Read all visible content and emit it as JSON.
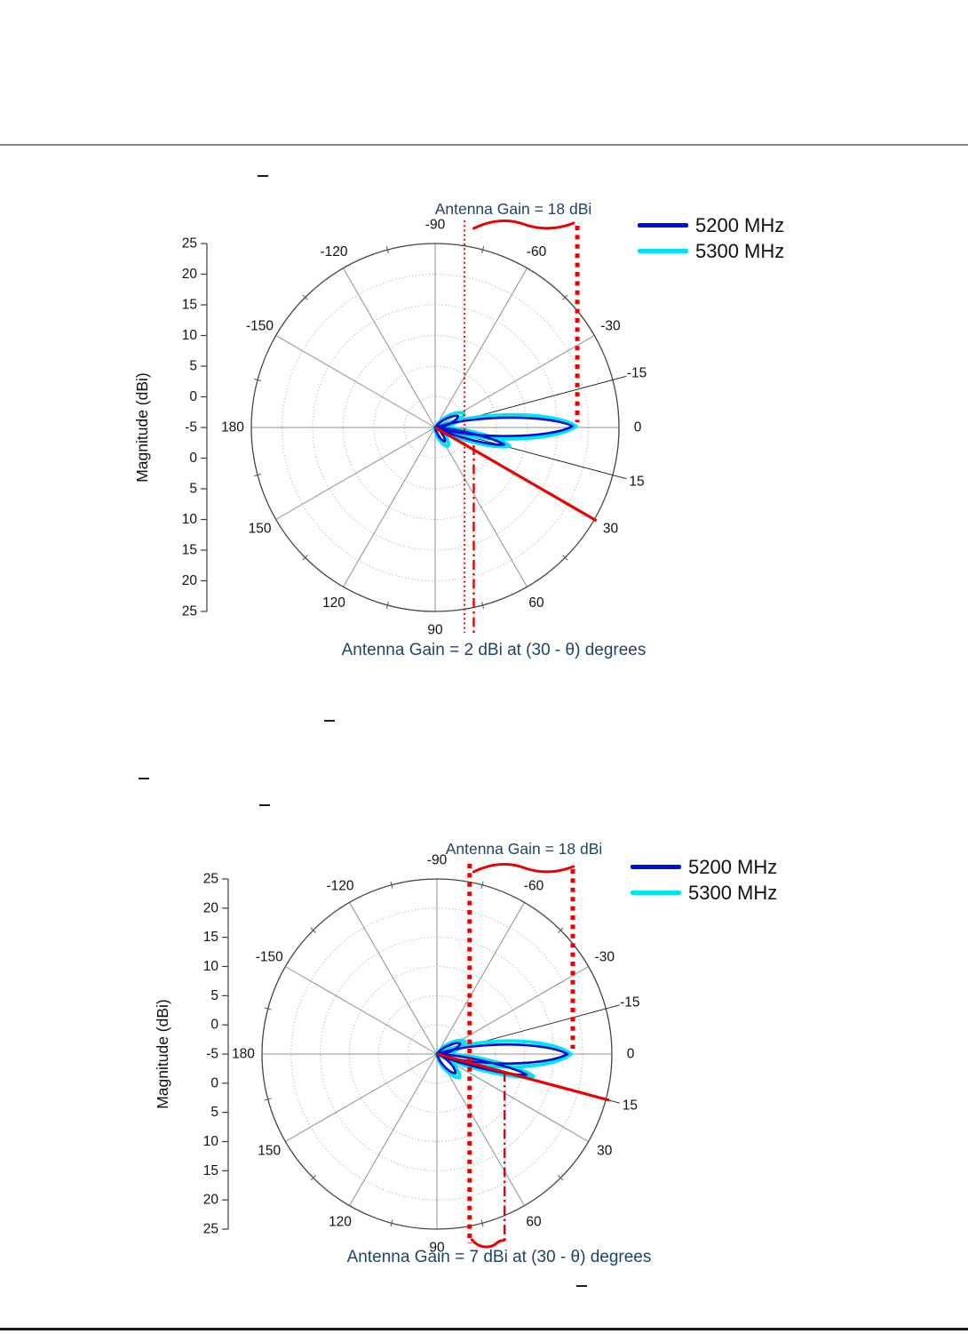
{
  "page": {
    "colors": {
      "annotation_text": "#1f4468",
      "red": "#e90000",
      "top_rule": "#8a8a8a",
      "bottom_rule": "#151515"
    }
  },
  "chart_data": [
    {
      "type": "polar",
      "annotations": {
        "top": "Antenna Gain = 18 dBi",
        "bottom": "Antenna Gain = 2 dBi at (30 - θ) degrees"
      },
      "axis_label": "Magnitude (dBi)",
      "scale": {
        "center_dbi": -5,
        "outer_dbi": 25,
        "ring_step_dbi": 5
      },
      "mag_ticks": [
        "25",
        "20",
        "15",
        "10",
        "5",
        "0",
        "-5",
        "0",
        "5",
        "10",
        "15",
        "20",
        "25"
      ],
      "spoke_step_deg": 30,
      "extra_spokes_deg": [
        -15,
        15
      ],
      "angle_labels": [
        {
          "deg": -90,
          "text": "-90"
        },
        {
          "deg": -60,
          "text": "-60"
        },
        {
          "deg": -30,
          "text": "-30"
        },
        {
          "deg": -15,
          "text": "-15"
        },
        {
          "deg": 0,
          "text": "0"
        },
        {
          "deg": 15,
          "text": "15"
        },
        {
          "deg": 30,
          "text": "30"
        },
        {
          "deg": 60,
          "text": "60"
        },
        {
          "deg": 90,
          "text": "90"
        },
        {
          "deg": 120,
          "text": "120"
        },
        {
          "deg": 150,
          "text": "150"
        },
        {
          "deg": 180,
          "text": "180"
        },
        {
          "deg": -150,
          "text": "-150"
        },
        {
          "deg": -120,
          "text": "-120"
        }
      ],
      "legend": [
        {
          "label": "5200 MHz",
          "color": "#0010cf"
        },
        {
          "label": "5300 MHz",
          "color": "#00e4f0"
        }
      ],
      "series": [
        {
          "name": "5300 MHz",
          "color": "#00e4f0",
          "stroke_px": 4,
          "lobes": [
            {
              "deg": -0.5,
              "peak_dbi": 18,
              "width_frac": 0.105
            },
            {
              "deg": 14,
              "peak_dbi": 7.5,
              "width_frac": 0.08
            },
            {
              "deg": -26,
              "peak_dbi": 0.2,
              "width_frac": 0.18
            },
            {
              "deg": 55,
              "peak_dbi": -1.3,
              "width_frac": 0.2
            }
          ]
        },
        {
          "name": "5200 MHz",
          "color": "#0010cf",
          "stroke_px": 2.6,
          "lobes": [
            {
              "deg": -0.5,
              "peak_dbi": 17.4,
              "width_frac": 0.083
            },
            {
              "deg": 14,
              "peak_dbi": 6.6,
              "width_frac": 0.055
            },
            {
              "deg": -26,
              "peak_dbi": -0.8,
              "width_frac": 0.15
            },
            {
              "deg": 55,
              "peak_dbi": -2.2,
              "width_frac": 0.15
            }
          ]
        }
      ],
      "markers": {
        "vertical_lines": [
          {
            "style": "dotted-thin",
            "at_dbi": -0.2,
            "span": "full"
          },
          {
            "style": "dotted-thick",
            "at_dbi": 18.2,
            "span": "top-to-center"
          },
          {
            "style": "dash-dot",
            "at_dbi": 1.3,
            "span": "center-to-bottom"
          }
        ],
        "radial_line": {
          "deg": 30,
          "to_dbi": 25.4
        },
        "wavy_top": {
          "x1_dbi": 1.3,
          "x2_dbi": 17.6
        },
        "wavy_bottom": null
      }
    },
    {
      "type": "polar",
      "annotations": {
        "top": "Antenna Gain = 18 dBi",
        "bottom": "Antenna Gain = 7 dBi at (30 - θ) degrees"
      },
      "axis_label": "Magnitude (dBi)",
      "scale": {
        "center_dbi": -5,
        "outer_dbi": 25,
        "ring_step_dbi": 5
      },
      "mag_ticks": [
        "25",
        "20",
        "15",
        "10",
        "5",
        "0",
        "-5",
        "0",
        "5",
        "10",
        "15",
        "20",
        "25"
      ],
      "spoke_step_deg": 30,
      "extra_spokes_deg": [
        -15,
        15
      ],
      "angle_labels": [
        {
          "deg": -90,
          "text": "-90"
        },
        {
          "deg": -60,
          "text": "-60"
        },
        {
          "deg": -30,
          "text": "-30"
        },
        {
          "deg": -15,
          "text": "-15"
        },
        {
          "deg": 0,
          "text": "0"
        },
        {
          "deg": 15,
          "text": "15"
        },
        {
          "deg": 30,
          "text": "30"
        },
        {
          "deg": 60,
          "text": "60"
        },
        {
          "deg": 90,
          "text": "90"
        },
        {
          "deg": 120,
          "text": "120"
        },
        {
          "deg": 150,
          "text": "150"
        },
        {
          "deg": 180,
          "text": "180"
        },
        {
          "deg": -150,
          "text": "-150"
        },
        {
          "deg": -120,
          "text": "-120"
        }
      ],
      "legend": [
        {
          "label": "5200 MHz",
          "color": "#0010cf"
        },
        {
          "label": "5300 MHz",
          "color": "#00e4f0"
        }
      ],
      "series": [
        {
          "name": "5300 MHz",
          "color": "#00e4f0",
          "stroke_px": 4,
          "lobes": [
            {
              "deg": 0,
              "peak_dbi": 18,
              "width_frac": 0.12
            },
            {
              "deg": 13,
              "peak_dbi": 12,
              "width_frac": 0.07
            },
            {
              "deg": -24,
              "peak_dbi": 0.3,
              "width_frac": 0.18
            },
            {
              "deg": 46,
              "peak_dbi": 0.6,
              "width_frac": 0.18
            }
          ]
        },
        {
          "name": "5200 MHz",
          "color": "#0010cf",
          "stroke_px": 2.6,
          "lobes": [
            {
              "deg": 0,
              "peak_dbi": 17.4,
              "width_frac": 0.09
            },
            {
              "deg": 13,
              "peak_dbi": 10.8,
              "width_frac": 0.05
            },
            {
              "deg": -24,
              "peak_dbi": -0.6,
              "width_frac": 0.15
            },
            {
              "deg": 46,
              "peak_dbi": -0.4,
              "width_frac": 0.15
            }
          ]
        }
      ],
      "markers": {
        "vertical_lines": [
          {
            "style": "dotted-thick",
            "at_dbi": 0.6,
            "span": "full"
          },
          {
            "style": "dotted-thick",
            "at_dbi": 18.3,
            "span": "top-to-center"
          },
          {
            "style": "dash-dot",
            "at_dbi": 6.6,
            "span": "center-to-bottom"
          }
        ],
        "radial_line": {
          "deg": 15,
          "to_dbi": 25.6
        },
        "wavy_top": {
          "x1_dbi": 1.3,
          "x2_dbi": 18.4
        },
        "wavy_bottom": {
          "x1_dbi": 1.0,
          "x2_dbi": 6.6
        }
      }
    }
  ]
}
